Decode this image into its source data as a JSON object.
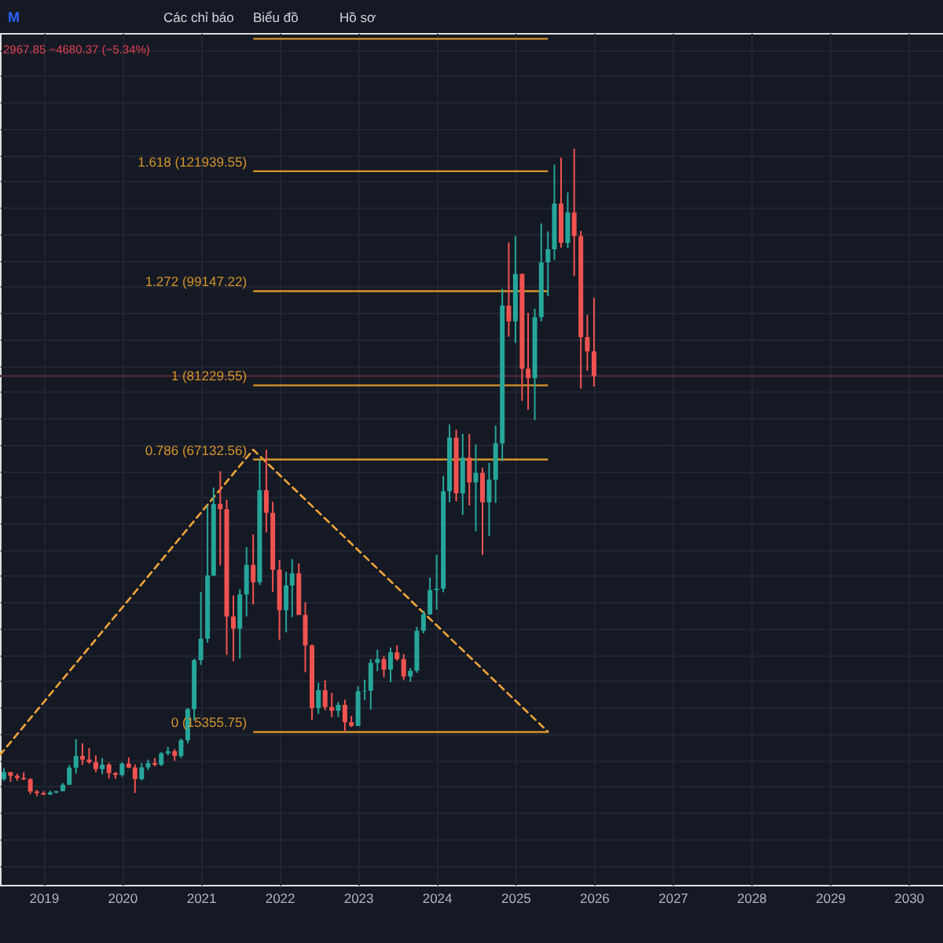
{
  "chart_data": {
    "type": "candlestick",
    "x": [
      "2018-07",
      "2018-08",
      "2018-09",
      "2018-10",
      "2018-11",
      "2018-12",
      "2019-01",
      "2019-02",
      "2019-03",
      "2019-04",
      "2019-05",
      "2019-06",
      "2019-07",
      "2019-08",
      "2019-09",
      "2019-10",
      "2019-11",
      "2019-12",
      "2020-01",
      "2020-02",
      "2020-03",
      "2020-04",
      "2020-05",
      "2020-06",
      "2020-07",
      "2020-08",
      "2020-09",
      "2020-10",
      "2020-11",
      "2020-12",
      "2021-01",
      "2021-02",
      "2021-03",
      "2021-04",
      "2021-05",
      "2021-06",
      "2021-07",
      "2021-08",
      "2021-09",
      "2021-10",
      "2021-11",
      "2021-12",
      "2022-01",
      "2022-02",
      "2022-03",
      "2022-04",
      "2022-05",
      "2022-06",
      "2022-07",
      "2022-08",
      "2022-09",
      "2022-10",
      "2022-11",
      "2022-12",
      "2023-01",
      "2023-02",
      "2023-03",
      "2023-04",
      "2023-05",
      "2023-06",
      "2023-07",
      "2023-08",
      "2023-09",
      "2023-10",
      "2023-11",
      "2023-12",
      "2024-01",
      "2024-02",
      "2024-03",
      "2024-04",
      "2024-05",
      "2024-06",
      "2024-07",
      "2024-08",
      "2024-09",
      "2024-10",
      "2024-11",
      "2024-12",
      "2025-01",
      "2025-02",
      "2025-03",
      "2025-04",
      "2025-05",
      "2025-06",
      "2025-07",
      "2025-08",
      "2025-09",
      "2025-10",
      "2025-11",
      "2025-12",
      "2026-01"
    ],
    "ohlc": [
      [
        6390,
        8500,
        6070,
        7730
      ],
      [
        7730,
        7750,
        5880,
        7030
      ],
      [
        7030,
        7410,
        6100,
        6630
      ],
      [
        6630,
        7680,
        6200,
        6370
      ],
      [
        6370,
        6590,
        3550,
        4040
      ],
      [
        4040,
        4310,
        3130,
        3740
      ],
      [
        3740,
        4100,
        3350,
        3460
      ],
      [
        3460,
        4200,
        3400,
        3850
      ],
      [
        3850,
        4140,
        3690,
        4100
      ],
      [
        4100,
        5640,
        4060,
        5320
      ],
      [
        5320,
        9070,
        5320,
        8570
      ],
      [
        8570,
        14000,
        7440,
        10800
      ],
      [
        10800,
        13200,
        9070,
        10100
      ],
      [
        10100,
        12300,
        9320,
        9600
      ],
      [
        9600,
        10900,
        7710,
        8290
      ],
      [
        8290,
        10400,
        7300,
        9150
      ],
      [
        9150,
        9500,
        6520,
        7540
      ],
      [
        7540,
        7750,
        6430,
        7190
      ],
      [
        7190,
        9580,
        6850,
        9350
      ],
      [
        9350,
        10500,
        8450,
        8600
      ],
      [
        8600,
        9190,
        3780,
        6410
      ],
      [
        6410,
        9460,
        6150,
        8620
      ],
      [
        8620,
        10100,
        8100,
        9450
      ],
      [
        9450,
        10400,
        8830,
        9140
      ],
      [
        9140,
        11500,
        8890,
        11300
      ],
      [
        11300,
        12500,
        10900,
        11700
      ],
      [
        11700,
        12100,
        9880,
        10800
      ],
      [
        10800,
        14100,
        10400,
        13800
      ],
      [
        13800,
        19900,
        13200,
        19700
      ],
      [
        19700,
        29300,
        17600,
        29000
      ],
      [
        29000,
        42000,
        28100,
        33100
      ],
      [
        33100,
        58400,
        32300,
        45100
      ],
      [
        45100,
        61800,
        45000,
        58700
      ],
      [
        58700,
        64900,
        47000,
        57700
      ],
      [
        57700,
        59500,
        30000,
        37300
      ],
      [
        37300,
        41300,
        28800,
        35000
      ],
      [
        35000,
        42500,
        29300,
        41500
      ],
      [
        41500,
        50500,
        37300,
        47100
      ],
      [
        47100,
        52900,
        39600,
        43800
      ],
      [
        43800,
        67000,
        43300,
        61300
      ],
      [
        61300,
        69000,
        53300,
        57000
      ],
      [
        57000,
        59100,
        42000,
        46200
      ],
      [
        46200,
        48000,
        32900,
        38500
      ],
      [
        38500,
        45800,
        34300,
        43200
      ],
      [
        43200,
        48200,
        37200,
        45500
      ],
      [
        45500,
        47400,
        37600,
        37600
      ],
      [
        37600,
        40000,
        26700,
        31800
      ],
      [
        31800,
        32000,
        17600,
        19900
      ],
      [
        19900,
        24700,
        18800,
        23300
      ],
      [
        23300,
        25200,
        19500,
        20100
      ],
      [
        20100,
        22800,
        18200,
        19400
      ],
      [
        19400,
        21100,
        18200,
        20500
      ],
      [
        20500,
        21500,
        15400,
        17200
      ],
      [
        17200,
        18400,
        16300,
        16500
      ],
      [
        16500,
        24000,
        16500,
        23100
      ],
      [
        23100,
        25300,
        21400,
        23200
      ],
      [
        23200,
        29200,
        19600,
        28500
      ],
      [
        28500,
        31000,
        26900,
        29200
      ],
      [
        29200,
        29800,
        25800,
        27200
      ],
      [
        27200,
        31400,
        24800,
        30500
      ],
      [
        30500,
        31800,
        28900,
        29200
      ],
      [
        29200,
        30200,
        25200,
        25900
      ],
      [
        25900,
        27500,
        24900,
        27000
      ],
      [
        27000,
        35300,
        26600,
        34600
      ],
      [
        34600,
        38400,
        34100,
        37700
      ],
      [
        37700,
        44700,
        37600,
        42300
      ],
      [
        42300,
        49000,
        38600,
        42600
      ],
      [
        42600,
        64000,
        41900,
        61100
      ],
      [
        61100,
        73800,
        59000,
        71300
      ],
      [
        71300,
        72800,
        59200,
        60700
      ],
      [
        60700,
        72000,
        56600,
        67500
      ],
      [
        67500,
        72000,
        58400,
        62800
      ],
      [
        62800,
        70000,
        53500,
        64600
      ],
      [
        64600,
        65600,
        49000,
        59000
      ],
      [
        59000,
        66500,
        52600,
        63300
      ],
      [
        63300,
        73600,
        58900,
        70200
      ],
      [
        70200,
        99600,
        66800,
        96400
      ],
      [
        96400,
        108400,
        90500,
        93400
      ],
      [
        93400,
        109600,
        89300,
        102400
      ],
      [
        102400,
        102500,
        78300,
        84400
      ],
      [
        84400,
        95000,
        76600,
        82600
      ],
      [
        82600,
        95800,
        74600,
        94200
      ],
      [
        94200,
        112000,
        93400,
        104600
      ],
      [
        104600,
        110500,
        98200,
        107100
      ],
      [
        107100,
        123200,
        105100,
        115800
      ],
      [
        115800,
        124500,
        107400,
        108300
      ],
      [
        108300,
        117900,
        107300,
        114100
      ],
      [
        114100,
        126200,
        102000,
        109600
      ],
      [
        109600,
        110600,
        80600,
        90400
      ],
      [
        90400,
        94600,
        84000,
        87700
      ],
      [
        87700,
        97900,
        81000,
        83000
      ]
    ],
    "colors": [
      "#26a69a",
      "#ef5350",
      "#ef5350",
      "#ef5350",
      "#ef5350",
      "#ef5350",
      "#ef5350",
      "#26a69a",
      "#26a69a",
      "#26a69a",
      "#26a69a",
      "#26a69a",
      "#ef5350",
      "#ef5350",
      "#ef5350",
      "#26a69a",
      "#ef5350",
      "#ef5350",
      "#26a69a",
      "#ef5350",
      "#ef5350",
      "#26a69a",
      "#26a69a",
      "#ef5350",
      "#26a69a",
      "#26a69a",
      "#ef5350",
      "#26a69a",
      "#26a69a",
      "#26a69a",
      "#26a69a",
      "#26a69a",
      "#26a69a",
      "#ef5350",
      "#ef5350",
      "#ef5350",
      "#26a69a",
      "#26a69a",
      "#ef5350",
      "#26a69a",
      "#ef5350",
      "#ef5350",
      "#ef5350",
      "#26a69a",
      "#26a69a",
      "#ef5350",
      "#ef5350",
      "#ef5350",
      "#26a69a",
      "#ef5350",
      "#ef5350",
      "#26a69a",
      "#ef5350",
      "#ef5350",
      "#26a69a",
      "#26a69a",
      "#26a69a",
      "#26a69a",
      "#ef5350",
      "#26a69a",
      "#ef5350",
      "#ef5350",
      "#26a69a",
      "#26a69a",
      "#26a69a",
      "#26a69a",
      "#26a69a",
      "#26a69a",
      "#26a69a",
      "#ef5350",
      "#26a69a",
      "#ef5350",
      "#26a69a",
      "#ef5350",
      "#26a69a",
      "#26a69a",
      "#26a69a",
      "#ef5350",
      "#26a69a",
      "#ef5350",
      "#ef5350",
      "#26a69a",
      "#26a69a",
      "#26a69a",
      "#26a69a",
      "#ef5350",
      "#26a69a",
      "#ef5350",
      "#ef5350",
      "#ef5350",
      "#ef5350"
    ],
    "series": [
      {
        "type": "line",
        "x": [
          "2018-06-13",
          "2021-09",
          "2025-06"
        ],
        "values": [
          11000,
          69000,
          15400
        ],
        "color": "#f0a53a",
        "line_style": "dashed"
      }
    ],
    "ref_lines": [
      {
        "axis": "y",
        "value": 15355.75,
        "label": "0 (15355.75)",
        "color": "#d4952b"
      },
      {
        "axis": "y",
        "value": 67132.56,
        "label": "0.786 (67132.56)",
        "color": "#d4952b"
      },
      {
        "axis": "y",
        "value": 81229.55,
        "label": "1 (81229.55)",
        "color": "#d4952b"
      },
      {
        "axis": "y",
        "value": 99147.22,
        "label": "1.272 (99147.22)",
        "color": "#d4952b"
      },
      {
        "axis": "y",
        "value": 121939.55,
        "label": "1.618 (121939.55)",
        "color": "#d4952b"
      },
      {
        "axis": "y",
        "value": 147100,
        "label": null,
        "color": "#d4952b"
      },
      {
        "axis": "y",
        "value": 83000,
        "color": "#4b2a35"
      }
    ],
    "xlim": [
      "2018-06-13",
      "2030-06-10"
    ],
    "xticks": [
      "2019",
      "2020",
      "2021",
      "2022",
      "2023",
      "2024",
      "2025",
      "2026",
      "2027",
      "2028",
      "2029",
      "2030"
    ],
    "ylim": [
      -13700,
      148200
    ],
    "yticks": [
      {
        "value": -10000,
        "label": null
      },
      {
        "value": -5000,
        "label": null
      },
      {
        "value": 0,
        "label": null
      },
      {
        "value": 5000,
        "label": null
      },
      {
        "value": 10000,
        "label": null
      },
      {
        "value": 15000,
        "label": null
      },
      {
        "value": 20000,
        "label": null
      },
      {
        "value": 25000,
        "label": null
      },
      {
        "value": 30000,
        "label": null
      },
      {
        "value": 35000,
        "label": null
      },
      {
        "value": 40000,
        "label": null
      },
      {
        "value": 45000,
        "label": null
      },
      {
        "value": 50000,
        "label": null
      },
      {
        "value": 55000,
        "label": null
      },
      {
        "value": 60000,
        "label": null
      },
      {
        "value": 65000,
        "label": null
      },
      {
        "value": 70000,
        "label": null
      },
      {
        "value": 75000,
        "label": null
      },
      {
        "value": 80000,
        "label": null
      },
      {
        "value": 85000,
        "label": null
      },
      {
        "value": 90000,
        "label": null
      },
      {
        "value": 95000,
        "label": null
      },
      {
        "value": 100000,
        "label": null
      },
      {
        "value": 105000,
        "label": null
      },
      {
        "value": 110000,
        "label": null
      },
      {
        "value": 115000,
        "label": null
      },
      {
        "value": 120000,
        "label": null
      },
      {
        "value": 125000,
        "label": null
      },
      {
        "value": 130000,
        "label": null
      },
      {
        "value": 135000,
        "label": null
      },
      {
        "value": 140000,
        "label": null
      },
      {
        "value": 145000,
        "label": null
      }
    ],
    "grid": true,
    "tick_labels": "x",
    "annotations": [
      "M",
      "Các chỉ báo",
      "Biểu đồ",
      "Hồ sơ",
      "2967.85 −4680.37 (−5.34%)"
    ]
  }
}
